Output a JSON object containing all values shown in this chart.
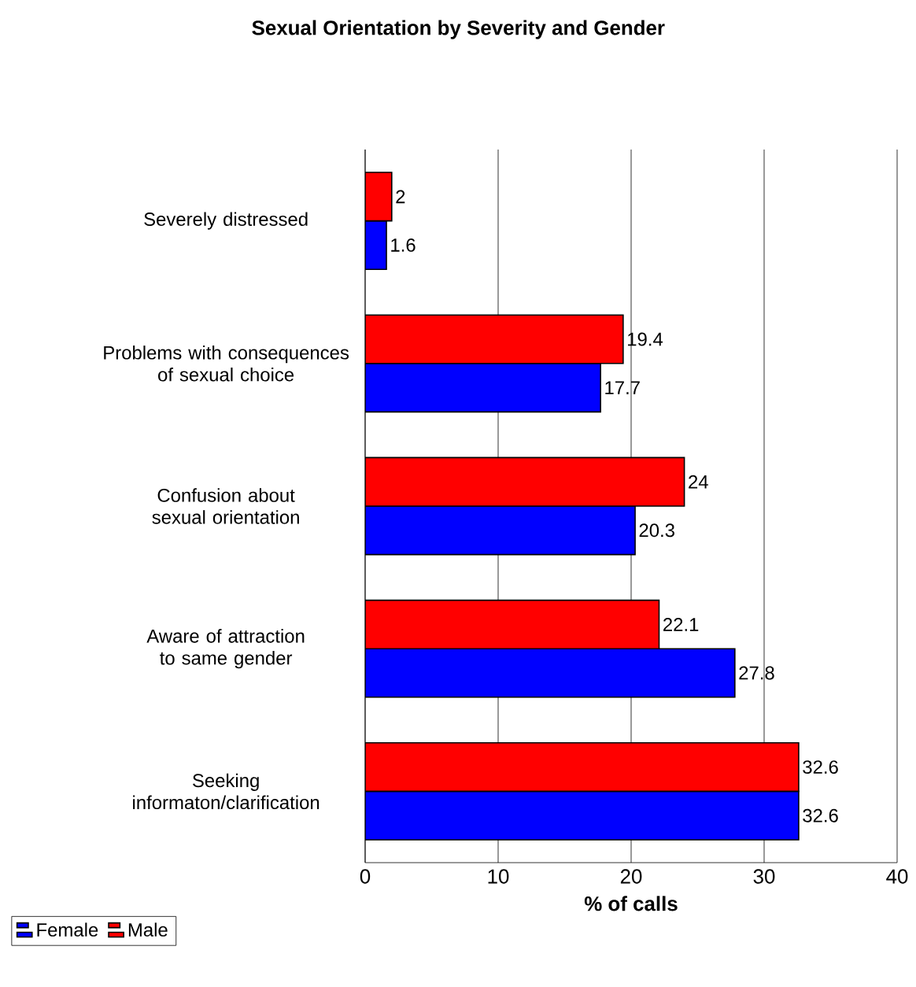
{
  "chart_data": {
    "type": "bar",
    "orientation": "horizontal",
    "title": "Sexual Orientation by Severity and Gender",
    "xlabel": "% of calls",
    "categories": [
      "Severely distressed",
      "Problems with consequences of sexual choice",
      "Confusion about sexual orientation",
      "Aware of attraction to same gender",
      "Seeking informaton/clarification"
    ],
    "series": [
      {
        "name": "Female",
        "color": "#0000ff",
        "values": [
          1.6,
          17.7,
          20.3,
          27.8,
          32.6
        ]
      },
      {
        "name": "Male",
        "color": "#ff0000",
        "values": [
          2,
          19.4,
          24,
          22.1,
          32.6
        ]
      }
    ],
    "xlim": [
      0,
      40
    ],
    "xticks": [
      0,
      10,
      20,
      30,
      40
    ],
    "grid": "x",
    "legend": "bottom left",
    "data_labels": true
  }
}
